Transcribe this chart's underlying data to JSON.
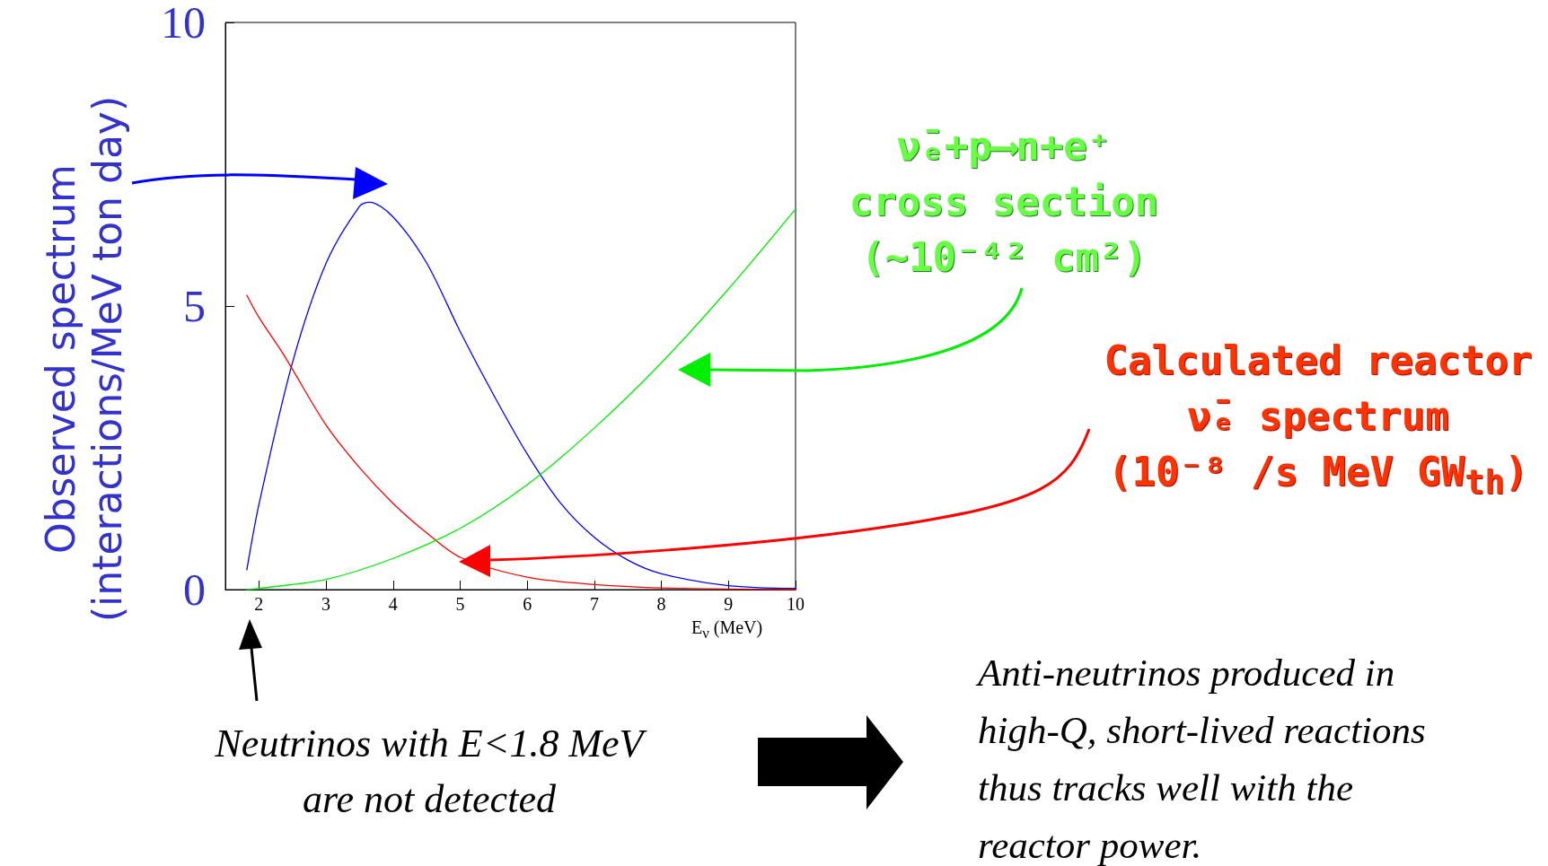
{
  "chart_data": {
    "type": "line",
    "xlabel": "E$_{ν}$ (MeV)",
    "ylabel": "Observed spectrum (interactions/MeV ton day)",
    "xlim": [
      1.5,
      10
    ],
    "xticks": [
      2,
      3,
      4,
      5,
      6,
      7,
      8,
      9,
      10
    ],
    "ylim": [
      0,
      10
    ],
    "yticks": [
      0,
      5,
      10
    ],
    "grid": false,
    "legend": false,
    "marker": "none",
    "line_style": "solid",
    "series": [
      {
        "color": "#0000ff",
        "x": [
          1.82,
          2,
          2.5,
          3,
          3.5,
          3.65,
          4,
          4.5,
          5,
          5.5,
          6,
          6.5,
          7,
          7.5,
          8,
          9,
          10
        ],
        "values": [
          0.35,
          1.5,
          4.0,
          5.75,
          6.76,
          6.83,
          6.57,
          5.76,
          4.55,
          3.43,
          2.39,
          1.52,
          0.92,
          0.52,
          0.28,
          0.07,
          0.02
        ]
      },
      {
        "name": "Calculated reactor ν̄ₑ spectrum (10⁻⁸ /s MeV GW$_{th}$)",
        "color": "#ff0000",
        "x": [
          1.82,
          2,
          2.38,
          3,
          3.5,
          4,
          4.5,
          5,
          6,
          7,
          8,
          9,
          10
        ],
        "values": [
          5.19,
          4.8,
          4.12,
          2.9,
          2.15,
          1.52,
          1.0,
          0.57,
          0.22,
          0.09,
          0.03,
          0.01,
          0
        ]
      },
      {
        "name": "ν̄ₑ+p⟶n+e⁺ cross section (~10⁻⁴² cm²)",
        "color": "#00ee00",
        "x": [
          1.82,
          2,
          3,
          4,
          5,
          6,
          7,
          8,
          9,
          10
        ],
        "values": [
          0,
          0.02,
          0.18,
          0.55,
          1.08,
          1.85,
          2.85,
          4.0,
          5.3,
          6.71
        ]
      }
    ],
    "annotations": [
      "Neutrinos with E<1.8 MeV are not detected",
      "Anti-neutrinos produced in high-Q, short-lived reactions thus tracks well with the reactor power."
    ]
  }
}
